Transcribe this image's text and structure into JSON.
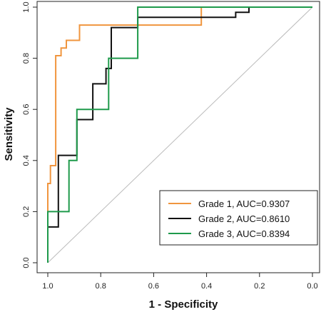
{
  "chart_data": {
    "type": "line",
    "xlabel": "1 - Specificity",
    "ylabel": "Sensitivity",
    "xlim": [
      1.0,
      0.0
    ],
    "ylim": [
      0.0,
      1.0
    ],
    "x_ticks": [
      1.0,
      0.8,
      0.6,
      0.4,
      0.2,
      0.0
    ],
    "y_ticks": [
      0.0,
      0.2,
      0.4,
      0.6,
      0.8,
      1.0
    ],
    "x_tick_labels": [
      "1.0",
      "0.8",
      "0.6",
      "0.4",
      "0.2",
      "0.0"
    ],
    "y_tick_labels": [
      "0.0",
      "0.2",
      "0.4",
      "0.6",
      "0.8",
      "1.0"
    ],
    "grid": false,
    "legend_position": "bottom-right",
    "reference_line": {
      "from": [
        1.0,
        0.0
      ],
      "to": [
        0.0,
        1.0
      ],
      "color": "#bbbbbb"
    },
    "series": [
      {
        "name": "Grade 1, AUC=0.9307",
        "color": "#f0953e",
        "x": [
          1.0,
          1.0,
          0.99,
          0.99,
          0.97,
          0.97,
          0.95,
          0.95,
          0.93,
          0.93,
          0.91,
          0.91,
          0.88,
          0.88,
          0.83,
          0.83,
          0.42,
          0.42,
          0.0
        ],
        "y": [
          0.0,
          0.31,
          0.31,
          0.38,
          0.38,
          0.81,
          0.81,
          0.84,
          0.84,
          0.87,
          0.87,
          0.87,
          0.87,
          0.93,
          0.93,
          0.93,
          0.93,
          1.0,
          1.0
        ]
      },
      {
        "name": "Grade 2, AUC=0.8610",
        "color": "#111111",
        "x": [
          1.0,
          1.0,
          0.96,
          0.96,
          0.92,
          0.92,
          0.89,
          0.89,
          0.86,
          0.86,
          0.83,
          0.83,
          0.78,
          0.78,
          0.76,
          0.76,
          0.66,
          0.66,
          0.29,
          0.29,
          0.24,
          0.24,
          0.0
        ],
        "y": [
          0.0,
          0.14,
          0.14,
          0.42,
          0.42,
          0.42,
          0.42,
          0.56,
          0.56,
          0.56,
          0.56,
          0.7,
          0.7,
          0.76,
          0.76,
          0.92,
          0.92,
          0.96,
          0.96,
          0.98,
          0.98,
          1.0,
          1.0
        ]
      },
      {
        "name": "Grade 3, AUC=0.8394",
        "color": "#1e9a4b",
        "x": [
          1.0,
          1.0,
          0.92,
          0.92,
          0.89,
          0.89,
          0.87,
          0.87,
          0.77,
          0.77,
          0.66,
          0.66,
          0.0
        ],
        "y": [
          0.0,
          0.2,
          0.2,
          0.4,
          0.4,
          0.6,
          0.6,
          0.6,
          0.6,
          0.8,
          0.8,
          1.0,
          1.0
        ]
      }
    ]
  }
}
